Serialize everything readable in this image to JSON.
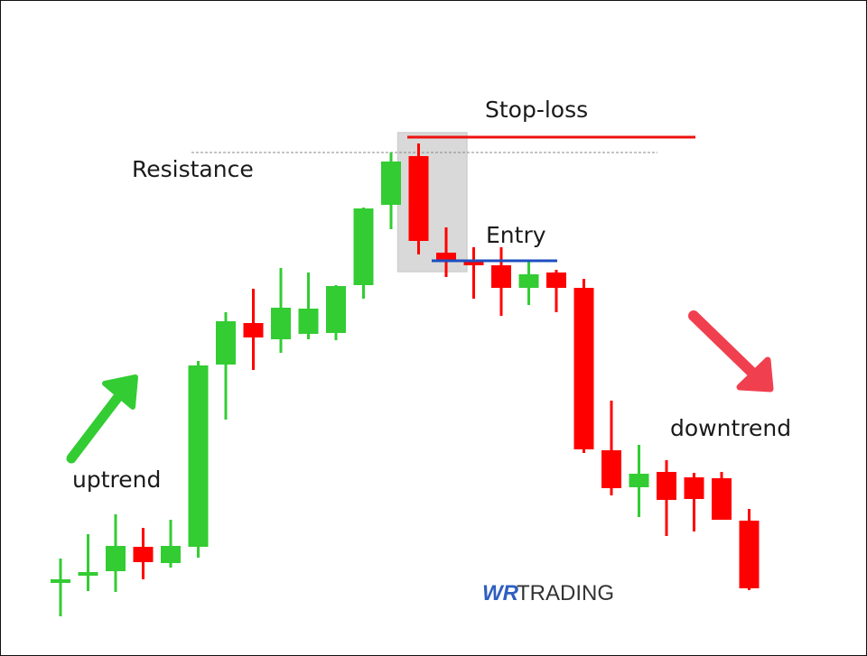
{
  "chart_data": {
    "type": "candlestick",
    "title": "",
    "xlabel": "",
    "ylabel": "",
    "grid": false,
    "colors": {
      "up": "#33cc33",
      "down": "#ff0000",
      "stop_loss": "#ee1111",
      "entry": "#1f4fc0",
      "highlight": "#d9d9d9",
      "resistance": "#888888",
      "up_arrow": "#33cc33",
      "down_arrow": "#f0404f"
    },
    "candles": [
      {
        "open": 55,
        "close": 59,
        "high": 82,
        "low": 18
      },
      {
        "open": 63,
        "close": 67,
        "high": 109,
        "low": 46
      },
      {
        "open": 68,
        "close": 96,
        "high": 131,
        "low": 45
      },
      {
        "open": 95,
        "close": 78,
        "high": 116,
        "low": 59
      },
      {
        "open": 77,
        "close": 96,
        "high": 125,
        "low": 72
      },
      {
        "open": 95,
        "close": 296,
        "high": 301,
        "low": 83
      },
      {
        "open": 297,
        "close": 345,
        "high": 355,
        "low": 236
      },
      {
        "open": 343,
        "close": 327,
        "high": 381,
        "low": 291
      },
      {
        "open": 325,
        "close": 360,
        "high": 404,
        "low": 310
      },
      {
        "open": 331,
        "close": 359,
        "high": 399,
        "low": 325
      },
      {
        "open": 332,
        "close": 384,
        "high": 385,
        "low": 324
      },
      {
        "open": 385,
        "close": 470,
        "high": 471,
        "low": 370
      },
      {
        "open": 474,
        "close": 522,
        "high": 532,
        "low": 447
      },
      {
        "open": 528,
        "close": 434,
        "high": 542,
        "low": 419
      },
      {
        "open": 421,
        "close": 413,
        "high": 449,
        "low": 394
      },
      {
        "open": 412,
        "close": 407,
        "high": 427,
        "low": 370
      },
      {
        "open": 407,
        "close": 382,
        "high": 427,
        "low": 351
      },
      {
        "open": 382,
        "close": 397,
        "high": 411,
        "low": 363
      },
      {
        "open": 399,
        "close": 382,
        "high": 402,
        "low": 355
      },
      {
        "open": 382,
        "close": 203,
        "high": 392,
        "low": 199
      },
      {
        "open": 202,
        "close": 160,
        "high": 257,
        "low": 152
      },
      {
        "open": 161,
        "close": 176,
        "high": 208,
        "low": 128
      },
      {
        "open": 178,
        "close": 147,
        "high": 191,
        "low": 107
      },
      {
        "open": 172,
        "close": 148,
        "high": 177,
        "low": 112
      },
      {
        "open": 171,
        "close": 125,
        "high": 178,
        "low": 125
      },
      {
        "open": 124,
        "close": 49,
        "high": 137,
        "low": 47
      }
    ],
    "levels": {
      "resistance": 532,
      "stop_loss": 549,
      "entry": 412
    },
    "highlight_candles": [
      13,
      14
    ],
    "annotations": {
      "stop_loss": "Stop-loss",
      "resistance": "Resistance",
      "entry": "Entry",
      "uptrend": "uptrend",
      "downtrend": "downtrend"
    }
  },
  "logo": {
    "mark": "WR",
    "text": "TRADING"
  }
}
